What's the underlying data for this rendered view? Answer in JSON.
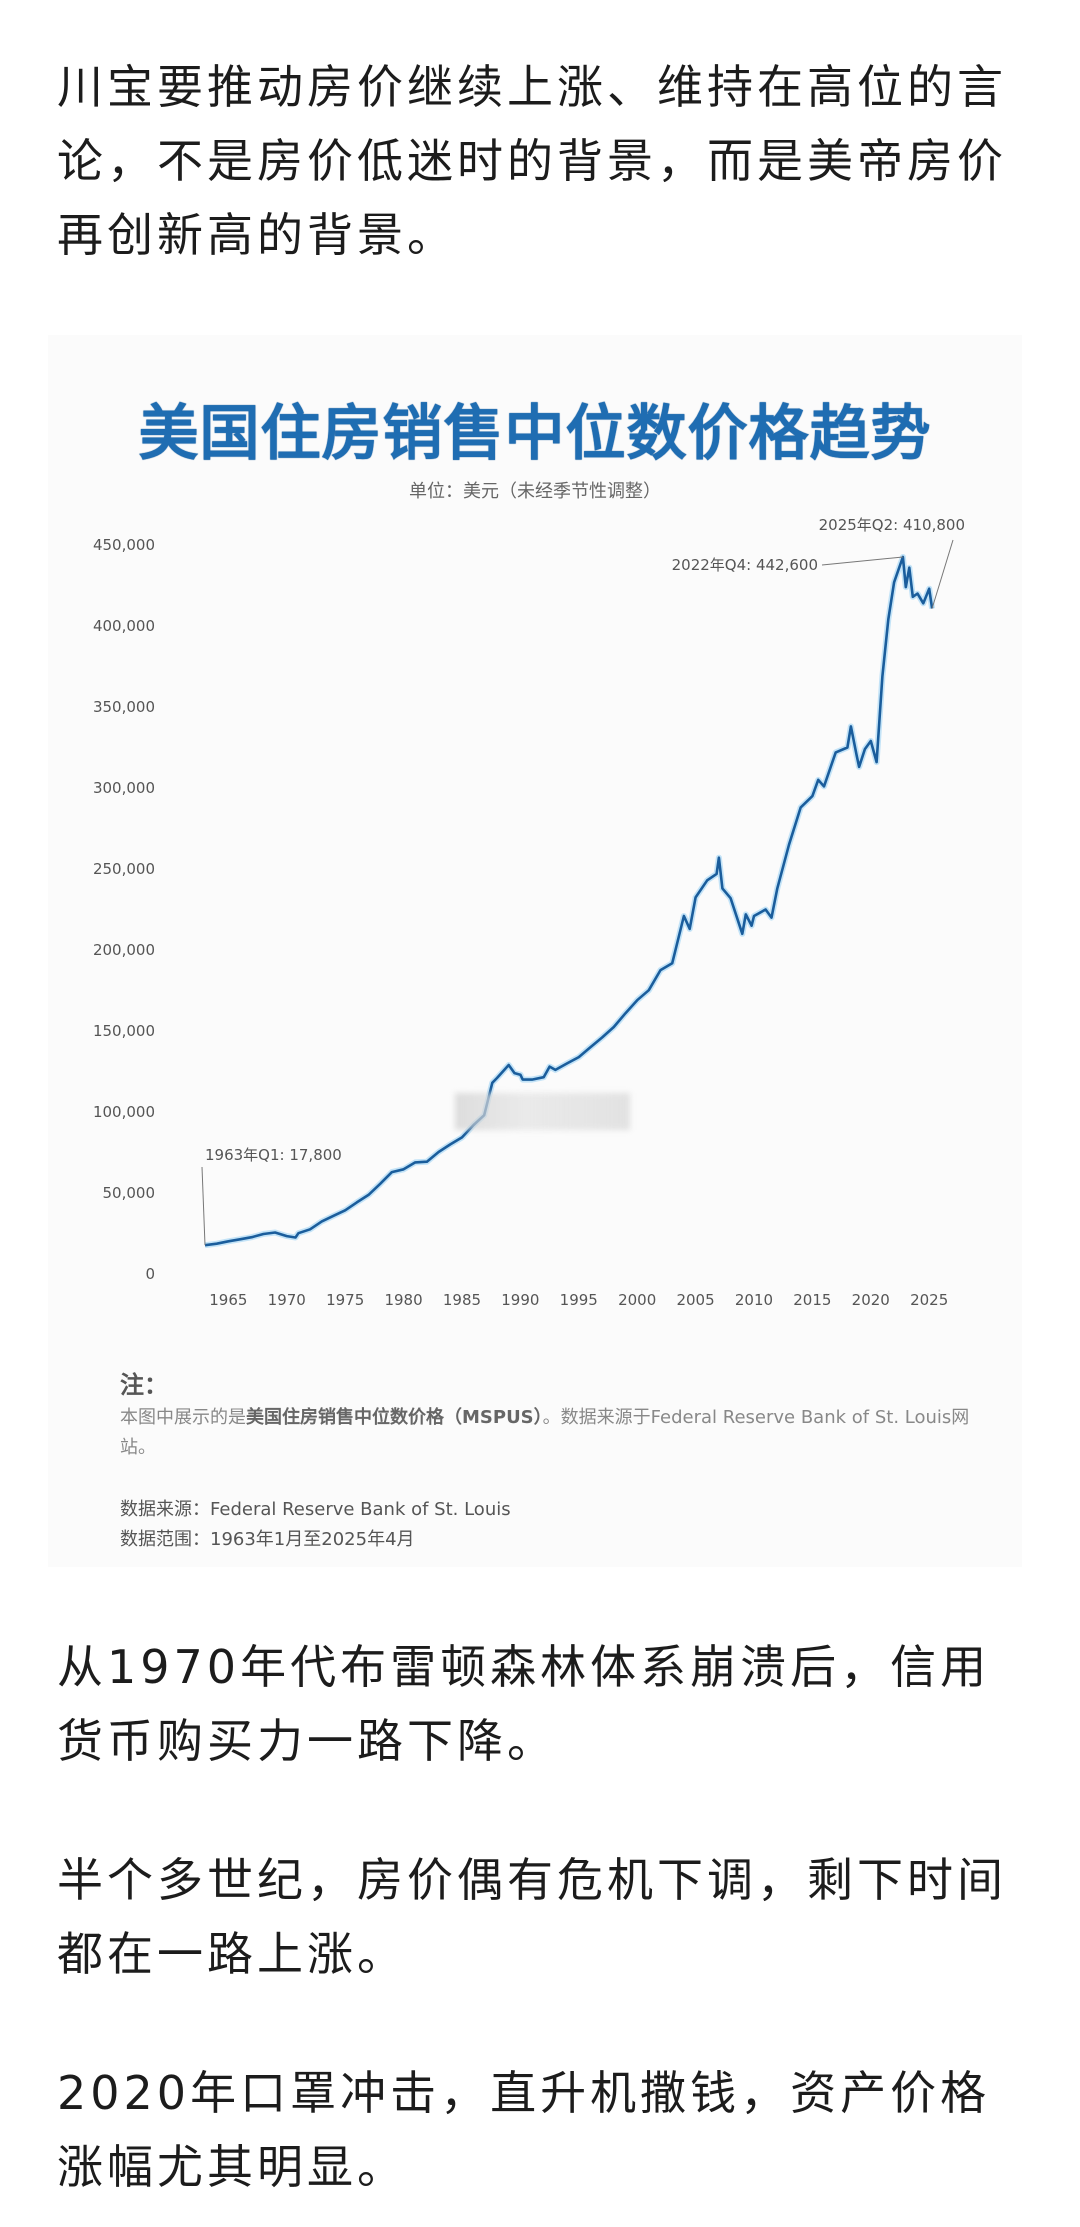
{
  "article": {
    "paragraphs": [
      "川宝要推动房价继续上涨、维持在高位的言论，不是房价低迷时的背景，而是美帝房价再创新高的背景。",
      "从1970年代布雷顿森林体系崩溃后，信用货币购买力一路下降。",
      "半个多世纪，房价偶有危机下调，剩下时间都在一路上涨。",
      "2020年口罩冲击，直升机撒钱，资产价格涨幅尤其明显。"
    ]
  },
  "chart_card": {
    "title": "美国住房销售中位数价格趋势",
    "subtitle": "单位：美元（未经季节性调整）",
    "notes_heading": "注：",
    "notes_prefix": "本图中展示的是",
    "notes_bold": "美国住房销售中位数价格（MSPUS）",
    "notes_suffix": "。数据来源于Federal Reserve Bank of St. Louis网站。",
    "source_line": "数据来源：Federal Reserve Bank of St. Louis",
    "range_line": "数据范围：1963年1月至2025年4月",
    "line_color": "#1a5d9c"
  },
  "chart_data": {
    "type": "line",
    "title": "美国住房销售中位数价格趋势",
    "subtitle": "单位：美元（未经季节性调整）",
    "xlabel": "",
    "ylabel": "",
    "ylim": [
      0,
      450000
    ],
    "xlim": [
      1963,
      2025.5
    ],
    "grid": false,
    "legend": null,
    "y_ticks": [
      "0",
      "50,000",
      "100,000",
      "150,000",
      "200,000",
      "250,000",
      "300,000",
      "350,000",
      "400,000",
      "450,000"
    ],
    "x_ticks": [
      "1965",
      "1970",
      "1975",
      "1980",
      "1985",
      "1990",
      "1995",
      "2000",
      "2005",
      "2010",
      "2015",
      "2020",
      "2025"
    ],
    "annotations": [
      {
        "text": "1963年Q1: 17,800",
        "x": 1963.0,
        "y": 17800
      },
      {
        "text": "2022年Q4: 442,600",
        "x": 2022.75,
        "y": 442600
      },
      {
        "text": "2025年Q2: 410,800",
        "x": 2025.25,
        "y": 410800
      }
    ],
    "series": [
      {
        "name": "MSPUS",
        "x": [
          1963,
          1964,
          1965,
          1966,
          1967,
          1968,
          1969,
          1970,
          1970.75,
          1971,
          1972,
          1973,
          1974,
          1975,
          1976,
          1977,
          1978,
          1979,
          1980,
          1981,
          1982,
          1983,
          1984,
          1985,
          1986,
          1986.9,
          1987.6,
          1988,
          1989,
          1989.5,
          1990,
          1990.2,
          1991,
          1992,
          1992.5,
          1993,
          1994,
          1995,
          1996,
          1997,
          1998,
          1999,
          2000,
          2001,
          2002,
          2003,
          2004,
          2004.5,
          2005,
          2006,
          2006.8,
          2007,
          2007.3,
          2008,
          2009,
          2009.3,
          2009.8,
          2010,
          2011,
          2011.5,
          2012,
          2013,
          2014,
          2015,
          2015.5,
          2016,
          2017,
          2018,
          2018.3,
          2018.8,
          2019,
          2019.5,
          2020,
          2020.5,
          2021,
          2021.5,
          2022,
          2022.75,
          2023,
          2023.3,
          2023.6,
          2024,
          2024.5,
          2025,
          2025.25
        ],
        "values": [
          17800,
          18700,
          20200,
          21400,
          22700,
          24700,
          25600,
          23400,
          22500,
          25200,
          27600,
          32500,
          35900,
          39300,
          44200,
          48800,
          55700,
          62900,
          64600,
          68900,
          69300,
          75300,
          80000,
          84300,
          92000,
          98000,
          118000,
          121000,
          129000,
          124000,
          123000,
          120000,
          120000,
          121500,
          128000,
          126000,
          130000,
          133900,
          140000,
          146000,
          152500,
          161000,
          169000,
          175200,
          187600,
          191800,
          221000,
          213000,
          232500,
          243000,
          247000,
          257000,
          238000,
          232000,
          210000,
          222000,
          215000,
          221000,
          225000,
          220000,
          238000,
          265000,
          288000,
          295000,
          305000,
          301000,
          322000,
          325000,
          338000,
          320000,
          313000,
          324000,
          329000,
          316000,
          369000,
          404000,
          427000,
          442600,
          424000,
          436000,
          418000,
          420000,
          414000,
          423000,
          410800
        ]
      }
    ]
  }
}
